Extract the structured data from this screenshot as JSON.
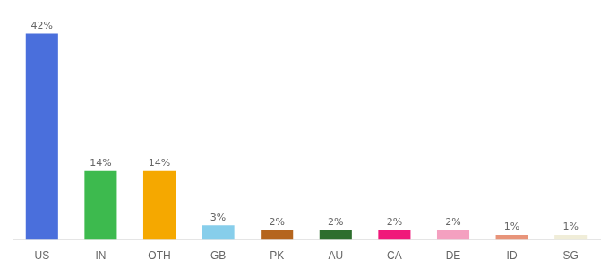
{
  "chart_data": {
    "type": "bar",
    "categories": [
      "US",
      "IN",
      "OTH",
      "GB",
      "PK",
      "AU",
      "CA",
      "DE",
      "ID",
      "SG"
    ],
    "values": [
      42,
      14,
      14,
      3,
      2,
      2,
      2,
      2,
      1,
      1
    ],
    "value_labels": [
      "42%",
      "14%",
      "14%",
      "3%",
      "2%",
      "2%",
      "2%",
      "2%",
      "1%",
      "1%"
    ],
    "colors": [
      "#4a6fdc",
      "#3dba4e",
      "#f5a800",
      "#87ceeb",
      "#b5651d",
      "#2d6e2d",
      "#f0187a",
      "#f4a0c0",
      "#e8947a",
      "#f0edd8"
    ],
    "ylim": [
      0,
      47
    ],
    "data_labels": true,
    "grid": false,
    "tick_labels": "x"
  }
}
